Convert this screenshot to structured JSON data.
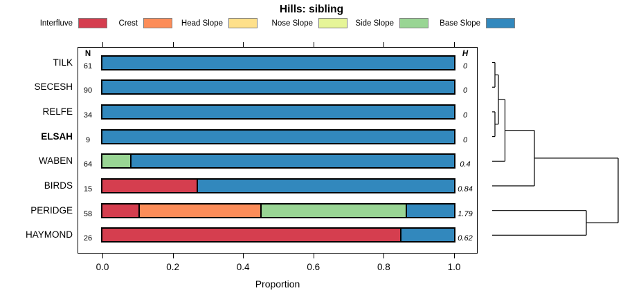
{
  "title": "Hills: sibling",
  "chart_data": {
    "type": "bar",
    "orientation": "horizontal",
    "stacked": true,
    "title": "Hills: sibling",
    "xlabel": "Proportion",
    "xlim": [
      0,
      1
    ],
    "x_ticks": [
      "0.0",
      "0.2",
      "0.4",
      "0.6",
      "0.8",
      "1.0"
    ],
    "x_tick_values": [
      0,
      0.2,
      0.4,
      0.6,
      0.8,
      1.0
    ],
    "grid": false,
    "legend_position": "top",
    "legend": [
      {
        "label": "Interfluve",
        "color": "#D53E4F"
      },
      {
        "label": "Crest",
        "color": "#FC8D59"
      },
      {
        "label": "Head Slope",
        "color": "#FEE08B"
      },
      {
        "label": "Nose Slope",
        "color": "#E6F598"
      },
      {
        "label": "Side Slope",
        "color": "#99D594"
      },
      {
        "label": "Base Slope",
        "color": "#3288BD"
      }
    ],
    "categories": [
      "TILK",
      "SECESH",
      "RELFE",
      "ELSAH",
      "WABEN",
      "BIRDS",
      "PERIDGE",
      "HAYMOND"
    ],
    "bold_categories": [
      "ELSAH"
    ],
    "columns": {
      "n_header": "N",
      "h_header": "H"
    },
    "n_values": [
      61,
      90,
      34,
      9,
      64,
      15,
      58,
      26
    ],
    "h_values": [
      "0",
      "0",
      "0",
      "0",
      "0.4",
      "0.84",
      "1.79",
      "0.62"
    ],
    "series": [
      {
        "name": "Interfluve",
        "values": [
          0,
          0,
          0,
          0,
          0,
          0.267,
          0.103,
          0.846
        ]
      },
      {
        "name": "Crest",
        "values": [
          0,
          0,
          0,
          0,
          0,
          0,
          0.345,
          0
        ]
      },
      {
        "name": "Head Slope",
        "values": [
          0,
          0,
          0,
          0,
          0,
          0,
          0,
          0
        ]
      },
      {
        "name": "Nose Slope",
        "values": [
          0,
          0,
          0,
          0,
          0,
          0,
          0,
          0
        ]
      },
      {
        "name": "Side Slope",
        "values": [
          0,
          0,
          0,
          0,
          0.078,
          0,
          0.414,
          0
        ]
      },
      {
        "name": "Base Slope",
        "values": [
          1,
          1,
          1,
          1,
          0.922,
          0.733,
          0.138,
          0.154
        ]
      }
    ],
    "dendrogram": {
      "description": "cluster tree on right joining rows; height is horizontal distance from leaves",
      "merges": [
        {
          "a": "TILK",
          "b": "SECESH",
          "height": 4
        },
        {
          "a": "RELFE",
          "b": "ELSAH",
          "height": 4
        },
        {
          "a": "m0",
          "b": "m1",
          "height": 9
        },
        {
          "a": "m2",
          "b": "WABEN",
          "height": 18.5
        },
        {
          "a": "m3",
          "b": "BIRDS",
          "height": 61
        },
        {
          "a": "PERIDGE",
          "b": "HAYMOND",
          "height": 136
        },
        {
          "a": "m4",
          "b": "m5",
          "height": 182
        }
      ]
    }
  }
}
